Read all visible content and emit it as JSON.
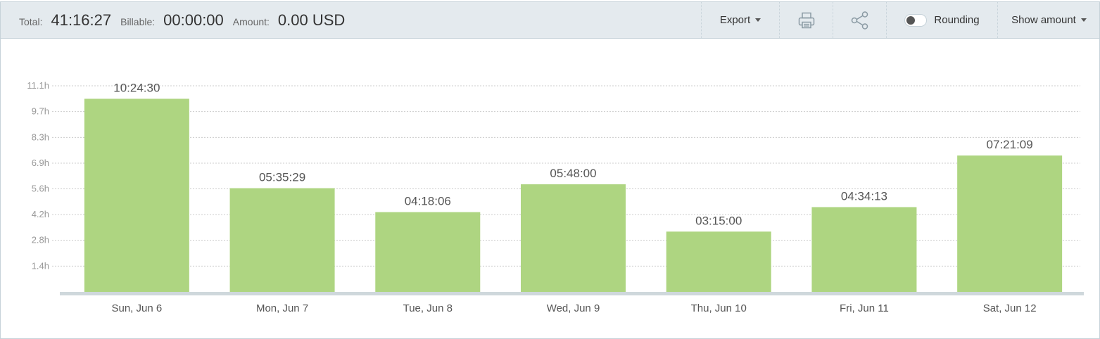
{
  "toolbar": {
    "total_label": "Total:",
    "total_value": "41:16:27",
    "billable_label": "Billable:",
    "billable_value": "00:00:00",
    "amount_label": "Amount:",
    "amount_value": "0.00 USD",
    "export_label": "Export",
    "print_icon": "print-icon",
    "share_icon": "share-icon",
    "rounding_label": "Rounding",
    "rounding_on": false,
    "show_amount_label": "Show amount"
  },
  "colors": {
    "bar": "#aed581",
    "grid": "#cccccc",
    "baseline": "#cfd8dc",
    "axis_text": "#999999",
    "label_text": "#555555"
  },
  "chart_data": {
    "type": "bar",
    "categories": [
      "Sun, Jun 6",
      "Mon, Jun 7",
      "Tue, Jun 8",
      "Wed, Jun 9",
      "Thu, Jun 10",
      "Fri, Jun 11",
      "Sat, Jun 12"
    ],
    "values": [
      10.41,
      5.59,
      4.3,
      5.8,
      3.25,
      4.57,
      7.35
    ],
    "data_labels": [
      "10:24:30",
      "05:35:29",
      "04:18:06",
      "05:48:00",
      "03:15:00",
      "04:34:13",
      "07:21:09"
    ],
    "y_ticks": [
      "1.4h",
      "2.8h",
      "4.2h",
      "5.6h",
      "6.9h",
      "8.3h",
      "9.7h",
      "11.1h"
    ],
    "y_tick_values": [
      1.39,
      2.78,
      4.17,
      5.56,
      6.94,
      8.33,
      9.72,
      11.11
    ],
    "ylim": [
      0,
      11.11
    ],
    "grid": true,
    "title": "",
    "xlabel": "",
    "ylabel": ""
  }
}
